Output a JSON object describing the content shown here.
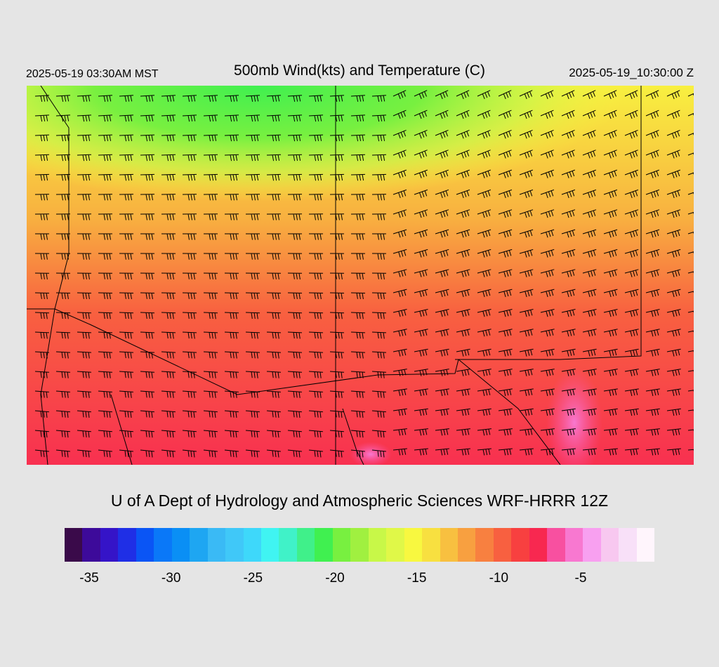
{
  "header": {
    "local_time": "2025-05-19 03:30AM MST",
    "title": "500mb Wind(kts) and Temperature (C)",
    "valid_time": "2025-05-19_10:30:00 Z"
  },
  "footer": {
    "credit": "U of A Dept of Hydrology and Atmospheric Sciences WRF-HRRR 12Z"
  },
  "colorbar": {
    "colors": [
      "#3a0a4a",
      "#3d0a9a",
      "#3514c8",
      "#1f2fe6",
      "#0a55f5",
      "#0a78f8",
      "#0a8ff5",
      "#1ea6f2",
      "#3abaf5",
      "#40c8f8",
      "#3ed8fa",
      "#40f4f2",
      "#40f2c8",
      "#40f08a",
      "#40f050",
      "#78f040",
      "#a0f040",
      "#c8f848",
      "#e0f848",
      "#f8f840",
      "#f8e040",
      "#f8c040",
      "#f8a040",
      "#f88040",
      "#f86040",
      "#f84040",
      "#f82850",
      "#f850a0",
      "#f878d0",
      "#f8a0f0",
      "#f8c8f0",
      "#f8e0f8",
      "#fff5fc"
    ],
    "tick_labels": [
      "-35",
      "-30",
      "-25",
      "-20",
      "-15",
      "-10",
      "-5"
    ],
    "tick_values": [
      -35,
      -30,
      -25,
      -20,
      -15,
      -10,
      -5
    ],
    "min": -36,
    "max": -1
  },
  "map": {
    "field": "500mb temperature (C) with wind barbs (kts)",
    "temperature_regions": [
      {
        "area": "north-central",
        "temp_c": -21
      },
      {
        "area": "north-west",
        "temp_c": -18
      },
      {
        "area": "central",
        "temp_c": -14
      },
      {
        "area": "east",
        "temp_c": -12
      },
      {
        "area": "south",
        "temp_c": -8
      },
      {
        "area": "south-east",
        "temp_c": -5
      }
    ]
  }
}
